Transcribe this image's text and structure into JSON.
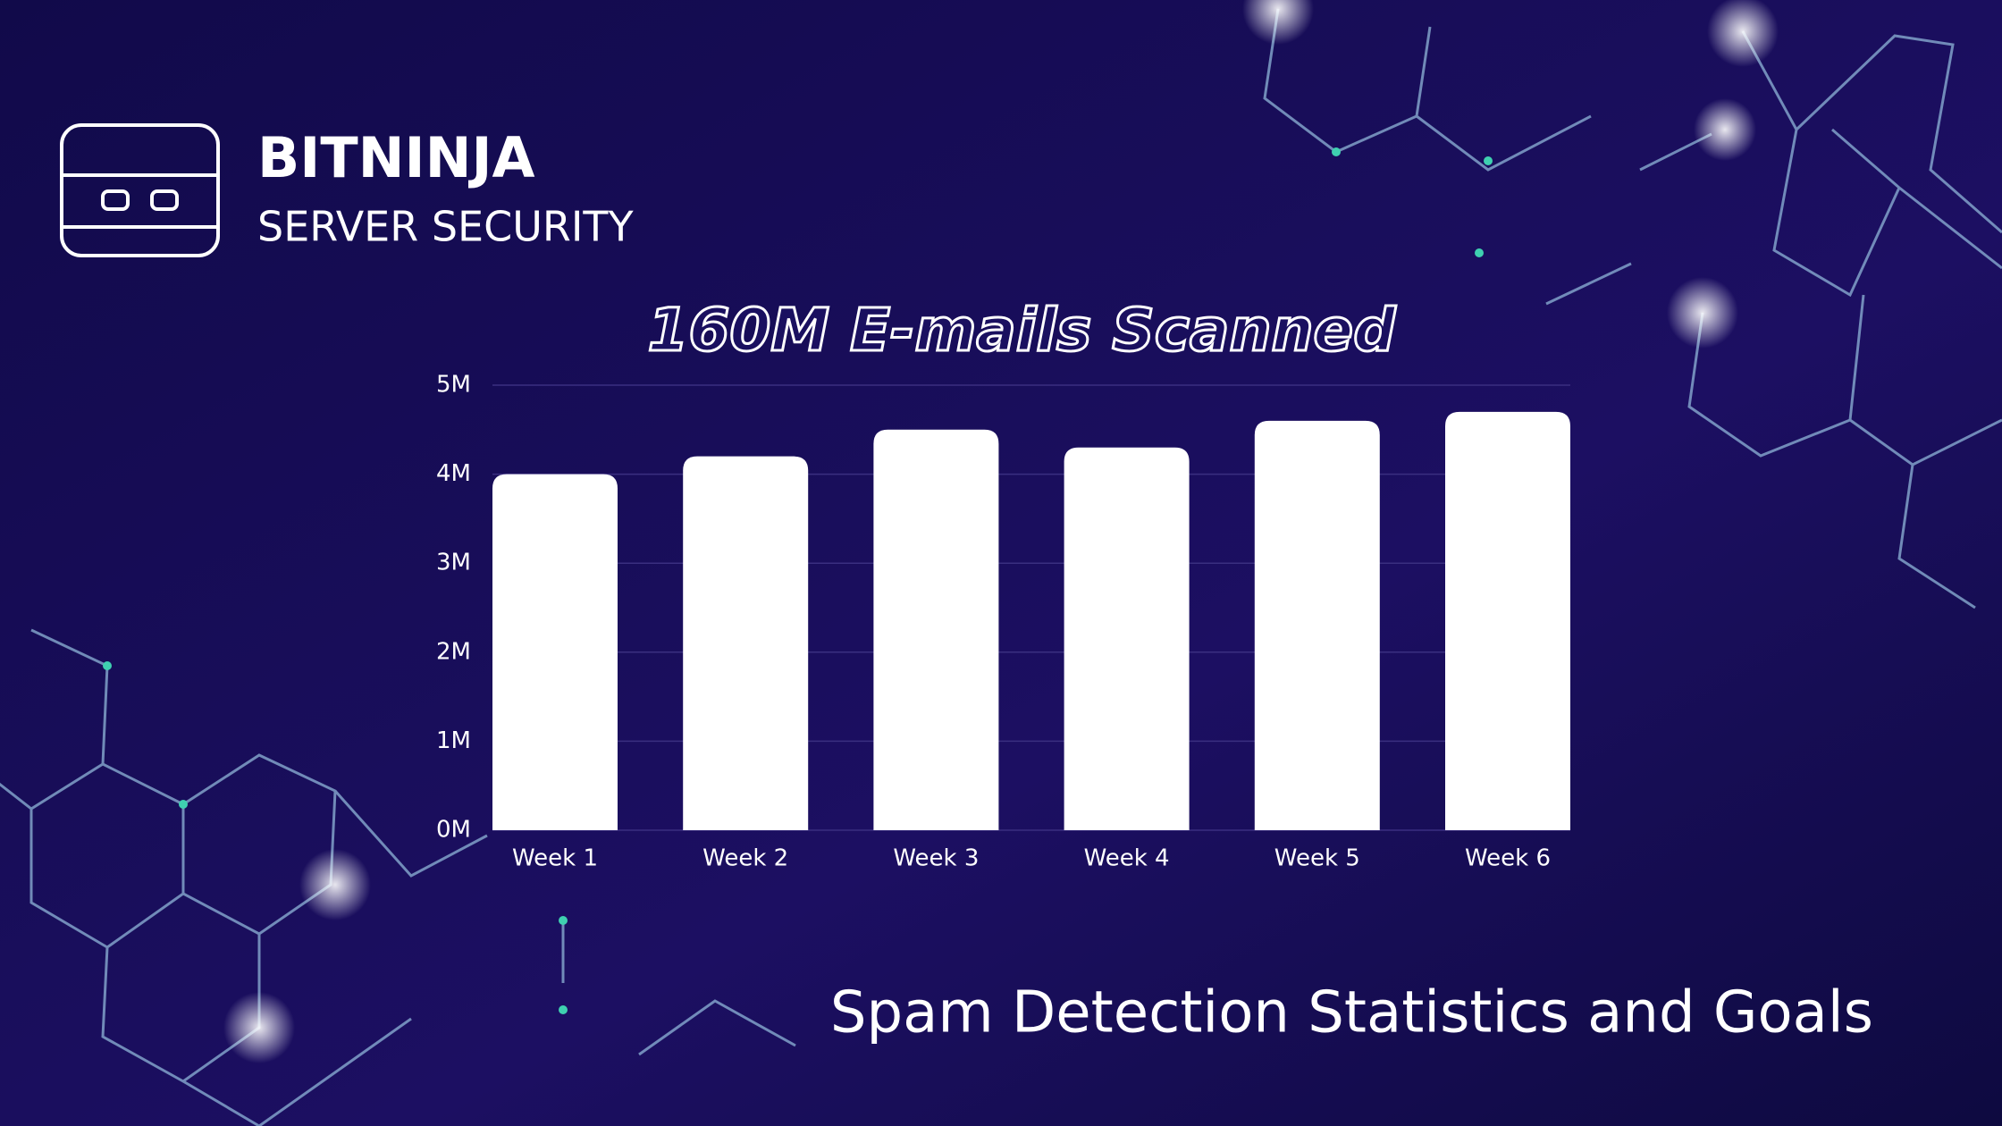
{
  "logo": {
    "title": "BITNINJA",
    "subtitle": "SERVER SECURITY"
  },
  "chart_data": {
    "type": "bar",
    "title": "160M E-mails Scanned",
    "categories": [
      "Week 1",
      "Week 2",
      "Week 3",
      "Week 4",
      "Week 5",
      "Week 6"
    ],
    "values": [
      4.0,
      4.2,
      4.5,
      4.3,
      4.6,
      4.7
    ],
    "color": "#ffffff",
    "ylim": [
      0,
      5
    ],
    "yticks": [
      {
        "value": 0,
        "label": "0M"
      },
      {
        "value": 1,
        "label": "1M"
      },
      {
        "value": 2,
        "label": "2M"
      },
      {
        "value": 3,
        "label": "3M"
      },
      {
        "value": 4,
        "label": "4M"
      },
      {
        "value": 5,
        "label": "5M"
      }
    ],
    "grid": true
  },
  "caption": "Spam Detection Statistics and Goals"
}
